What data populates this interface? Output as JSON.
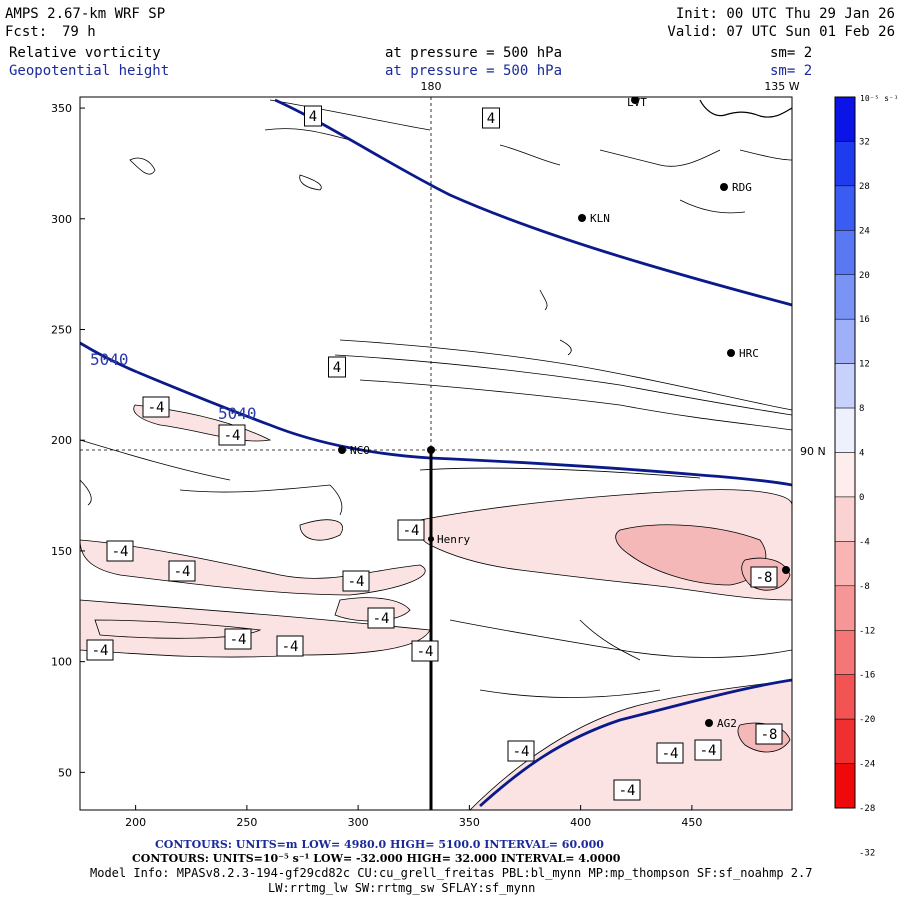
{
  "header": {
    "title": "AMPS 2.67-km WRF SP",
    "fcst_label": "Fcst:",
    "fcst_value": "79 h",
    "init": "Init: 00 UTC Thu 29 Jan 26",
    "valid": "Valid: 07 UTC Sun 01 Feb 26",
    "field1": "Relative vorticity",
    "field1_level": "at pressure =  500 hPa",
    "field1_sm": "sm= 2",
    "field2": "Geopotential height",
    "field2_level": "at pressure =  500 hPa",
    "field2_sm": "sm= 2"
  },
  "map_labels": {
    "lon_180": "180",
    "lon_135w": "135 W",
    "lat_90n": "90 N",
    "height_contour_a": "5040",
    "height_contour_b": "5040"
  },
  "stations": [
    {
      "name": "LVT"
    },
    {
      "name": "RDG"
    },
    {
      "name": "KLN"
    },
    {
      "name": "HRC"
    },
    {
      "name": "NCO"
    },
    {
      "name": "Henry"
    },
    {
      "name": "AG2"
    }
  ],
  "contour_labels": [
    "4",
    "4",
    "4",
    "-4",
    "-4",
    "-4",
    "-4",
    "-4",
    "-4",
    "-4",
    "-4",
    "-4",
    "-4",
    "-4",
    "-8",
    "-4",
    "-4",
    "-4",
    "-8",
    "-4"
  ],
  "axes": {
    "x_ticks": [
      "200",
      "250",
      "300",
      "350",
      "400",
      "450"
    ],
    "y_ticks": [
      "350",
      "300",
      "250",
      "200",
      "150",
      "100",
      "50"
    ]
  },
  "colorbar": {
    "unit": "10⁻⁵ s⁻¹",
    "labels": [
      "32",
      "28",
      "24",
      "20",
      "16",
      "12",
      "8",
      "4",
      "0",
      "-4",
      "-8",
      "-12",
      "-16",
      "-20",
      "-24",
      "-28",
      "-32"
    ],
    "colors_pos": [
      "#0a14e6",
      "#1f3bf0",
      "#3b5cf2",
      "#5a78f4",
      "#7a94f6",
      "#9fb0f8",
      "#c7d1fb",
      "#eef0fe"
    ],
    "colors_neg": [
      "#fdeded",
      "#fbd2d2",
      "#f9b4b4",
      "#f79696",
      "#f47676",
      "#f25454",
      "#f03030",
      "#ee0a0a"
    ]
  },
  "footer": {
    "line1": "CONTOURS:  UNITS=m  LOW=  4980.0        HIGH=  5100.0       INTERVAL=   60.000",
    "line2": "CONTOURS:  UNITS=10⁻⁵ s⁻¹  LOW=  -32.000      HIGH=  32.000      INTERVAL=   4.0000",
    "line3": "Model Info: MPASv8.2.3-194-gf29cd82c CU:cu_grell_freitas PBL:bl_mynn MP:mp_thompson SF:sf_noahmp 2.7",
    "line4": "LW:rrtmg_lw SW:rrtmg_sw SFLAY:sf_mynn"
  },
  "chart_data": {
    "type": "heatmap",
    "title": "Relative vorticity / Geopotential height at pressure = 500 hPa",
    "x_range": [
      175,
      495
    ],
    "y_range": [
      33,
      355
    ],
    "x_ticks": [
      200,
      250,
      300,
      350,
      400,
      450
    ],
    "y_ticks": [
      50,
      100,
      150,
      200,
      250,
      300,
      350
    ],
    "height_contour_interval_m": 60,
    "height_low_m": 4980,
    "height_high_m": 5100,
    "vorticity_contour_interval": 4,
    "vorticity_low": -32,
    "vorticity_high": 32
  }
}
